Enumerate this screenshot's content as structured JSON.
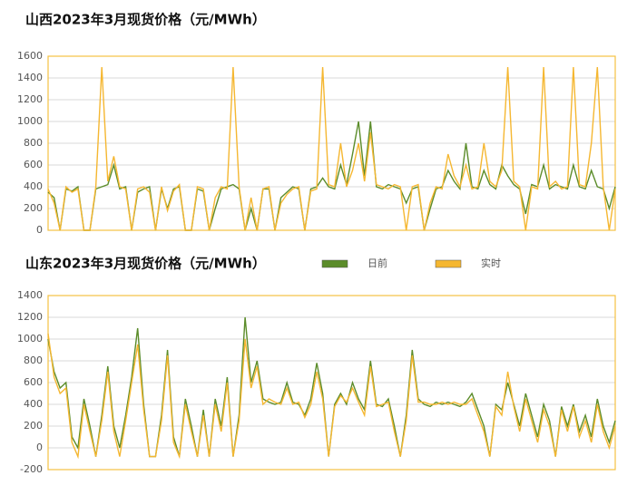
{
  "chart_data": [
    {
      "type": "line",
      "title": "山西2023年3月现货价格（元/MWh）",
      "ylim": [
        0,
        1600
      ],
      "yticks": [
        0,
        200,
        400,
        600,
        800,
        1000,
        1200,
        1400,
        1600
      ],
      "grid": true,
      "series": [
        {
          "color": "#5b8c2a",
          "values": [
            350,
            300,
            0,
            380,
            360,
            400,
            0,
            0,
            380,
            400,
            420,
            600,
            380,
            400,
            0,
            350,
            380,
            400,
            0,
            380,
            200,
            380,
            400,
            0,
            0,
            380,
            360,
            0,
            200,
            380,
            400,
            420,
            380,
            0,
            200,
            0,
            380,
            380,
            0,
            300,
            350,
            400,
            380,
            0,
            380,
            400,
            480,
            400,
            380,
            600,
            420,
            700,
            1000,
            500,
            1000,
            400,
            380,
            420,
            400,
            380,
            250,
            380,
            400,
            0,
            200,
            380,
            400,
            550,
            450,
            380,
            800,
            400,
            380,
            550,
            420,
            380,
            600,
            500,
            420,
            380,
            150,
            420,
            400,
            600,
            380,
            420,
            400,
            380,
            600,
            400,
            380,
            550,
            400,
            380,
            200,
            400
          ]
        },
        {
          "color": "#f5b731",
          "values": [
            380,
            250,
            0,
            400,
            350,
            380,
            0,
            0,
            400,
            1500,
            450,
            680,
            400,
            380,
            0,
            380,
            400,
            350,
            0,
            400,
            180,
            360,
            420,
            0,
            0,
            400,
            380,
            0,
            300,
            400,
            380,
            1500,
            400,
            0,
            300,
            0,
            380,
            400,
            0,
            250,
            330,
            380,
            400,
            0,
            360,
            380,
            1500,
            420,
            400,
            800,
            400,
            550,
            800,
            450,
            900,
            420,
            400,
            380,
            420,
            400,
            0,
            400,
            420,
            0,
            250,
            400,
            380,
            700,
            500,
            400,
            600,
            380,
            400,
            800,
            450,
            400,
            550,
            1500,
            450,
            400,
            0,
            400,
            380,
            1500,
            400,
            450,
            380,
            400,
            1500,
            420,
            400,
            800,
            1500,
            400,
            0,
            380
          ]
        }
      ]
    },
    {
      "type": "line",
      "title": "山东2023年3月现货价格（元/MWh）",
      "ylim": [
        -200,
        1400
      ],
      "yticks": [
        -200,
        0,
        200,
        400,
        600,
        800,
        1000,
        1200,
        1400
      ],
      "grid": true,
      "series": [
        {
          "name": "日前",
          "color": "#5b8c2a",
          "values": [
            1000,
            700,
            550,
            600,
            100,
            0,
            450,
            200,
            -80,
            300,
            750,
            200,
            0,
            300,
            650,
            1100,
            400,
            -80,
            -80,
            300,
            900,
            100,
            -80,
            450,
            200,
            -80,
            350,
            -80,
            450,
            200,
            650,
            -80,
            300,
            1200,
            600,
            800,
            450,
            420,
            400,
            420,
            600,
            420,
            400,
            300,
            450,
            780,
            500,
            -80,
            400,
            500,
            400,
            600,
            450,
            350,
            800,
            400,
            380,
            450,
            200,
            -80,
            300,
            900,
            450,
            400,
            380,
            420,
            400,
            420,
            400,
            380,
            420,
            500,
            350,
            200,
            -80,
            400,
            350,
            600,
            400,
            200,
            500,
            300,
            100,
            400,
            250,
            -80,
            380,
            200,
            400,
            150,
            300,
            100,
            450,
            200,
            50,
            250
          ]
        },
        {
          "name": "实时",
          "color": "#f5b731",
          "values": [
            1050,
            650,
            500,
            550,
            50,
            -80,
            400,
            150,
            -80,
            250,
            700,
            150,
            -80,
            250,
            600,
            950,
            350,
            -80,
            -80,
            250,
            850,
            50,
            -80,
            400,
            150,
            -80,
            300,
            -80,
            400,
            150,
            600,
            -80,
            250,
            1000,
            550,
            750,
            400,
            450,
            420,
            400,
            550,
            400,
            420,
            280,
            400,
            700,
            450,
            -80,
            380,
            480,
            420,
            550,
            420,
            300,
            750,
            380,
            400,
            420,
            150,
            -80,
            250,
            850,
            420,
            420,
            400,
            400,
            420,
            400,
            420,
            400,
            400,
            450,
            300,
            150,
            -80,
            380,
            300,
            700,
            380,
            150,
            450,
            250,
            50,
            350,
            200,
            -80,
            350,
            150,
            380,
            100,
            250,
            50,
            400,
            150,
            0,
            200
          ]
        }
      ]
    }
  ]
}
